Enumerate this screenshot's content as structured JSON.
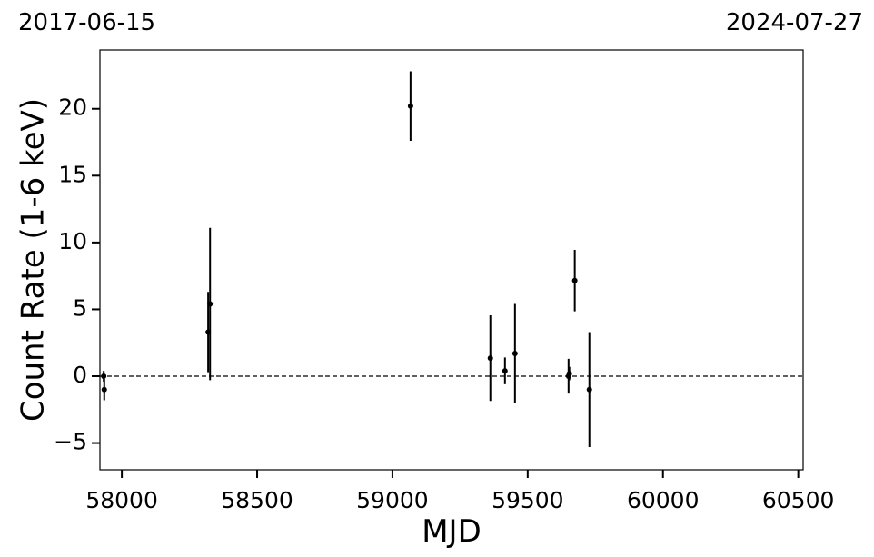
{
  "chart_data": {
    "type": "scatter",
    "date_labels": [
      "2017-06-15",
      "2024-07-27"
    ],
    "xlabel": "MJD",
    "ylabel": "Count Rate (1-6 keV)",
    "x": [
      57933,
      57935,
      58319,
      58326,
      59067,
      59362,
      59416,
      59453,
      59651,
      59654,
      59674,
      59728
    ],
    "values": [
      0.0,
      -1.0,
      3.3,
      5.4,
      20.2,
      1.35,
      0.4,
      1.7,
      0.0,
      0.2,
      7.15,
      -1.0
    ],
    "errors": [
      0.4,
      0.8,
      3.0,
      5.7,
      2.6,
      3.2,
      1.0,
      3.7,
      1.3,
      0.5,
      2.3,
      4.3
    ],
    "color": "#000000",
    "hline": 0,
    "xlim": [
      57919,
      60518
    ],
    "ylim": [
      -7.0,
      24.4
    ],
    "xticks": [
      58000,
      58500,
      59000,
      59500,
      60000,
      60500
    ],
    "yticks": [
      {
        "value": -5,
        "label": "−5"
      },
      0,
      5,
      10,
      15,
      20
    ]
  }
}
